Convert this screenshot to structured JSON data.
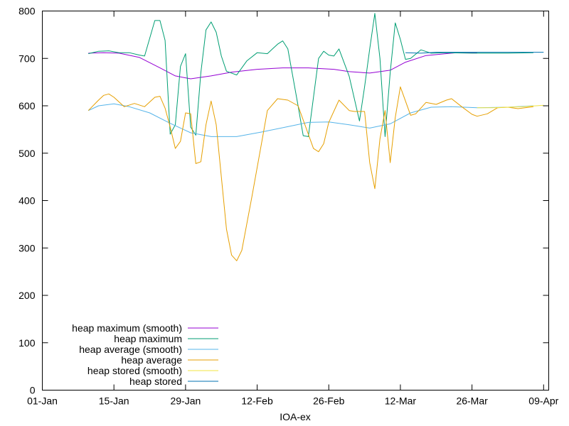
{
  "chart_data": {
    "type": "line",
    "title": "",
    "xlabel": "IOA-ex",
    "ylabel": "",
    "xlim": [
      "2024-01-01",
      "2024-04-09"
    ],
    "ylim": [
      0,
      800
    ],
    "x_ticks": [
      "01-Jan",
      "15-Jan",
      "29-Jan",
      "12-Feb",
      "26-Feb",
      "12-Mar",
      "26-Mar",
      "09-Apr"
    ],
    "y_ticks": [
      "0",
      "100",
      "200",
      "300",
      "400",
      "500",
      "600",
      "700",
      "800"
    ],
    "grid": false,
    "legend_position": "bottom-left",
    "series": [
      {
        "name": "heap maximum (smooth)",
        "color": "#9400d3",
        "points": [
          [
            "2024-01-10",
            711
          ],
          [
            "2024-01-13",
            712
          ],
          [
            "2024-01-16",
            711
          ],
          [
            "2024-01-20",
            702
          ],
          [
            "2024-01-24",
            680
          ],
          [
            "2024-01-27",
            663
          ],
          [
            "2024-01-30",
            657
          ],
          [
            "2024-02-03",
            663
          ],
          [
            "2024-02-07",
            671
          ],
          [
            "2024-02-12",
            677
          ],
          [
            "2024-02-17",
            680
          ],
          [
            "2024-02-22",
            680
          ],
          [
            "2024-02-27",
            677
          ],
          [
            "2024-03-01",
            672
          ],
          [
            "2024-03-05",
            669
          ],
          [
            "2024-03-09",
            675
          ],
          [
            "2024-03-12",
            692
          ],
          [
            "2024-03-16",
            706
          ],
          [
            "2024-03-22",
            712
          ],
          [
            "2024-03-26",
            712
          ]
        ]
      },
      {
        "name": "heap maximum",
        "color": "#009e73",
        "points": [
          [
            "2024-01-10",
            710
          ],
          [
            "2024-01-12",
            715
          ],
          [
            "2024-01-14",
            716
          ],
          [
            "2024-01-16",
            712
          ],
          [
            "2024-01-18",
            712
          ],
          [
            "2024-01-20",
            707
          ],
          [
            "2024-01-21",
            705
          ],
          [
            "2024-01-23",
            780
          ],
          [
            "2024-01-24",
            780
          ],
          [
            "2024-01-25",
            738
          ],
          [
            "2024-01-26",
            540
          ],
          [
            "2024-01-27",
            560
          ],
          [
            "2024-01-28",
            683
          ],
          [
            "2024-01-29",
            710
          ],
          [
            "2024-01-30",
            555
          ],
          [
            "2024-01-31",
            538
          ],
          [
            "2024-02-01",
            670
          ],
          [
            "2024-02-02",
            760
          ],
          [
            "2024-02-03",
            777
          ],
          [
            "2024-02-04",
            755
          ],
          [
            "2024-02-05",
            705
          ],
          [
            "2024-02-06",
            673
          ],
          [
            "2024-02-08",
            665
          ],
          [
            "2024-02-10",
            695
          ],
          [
            "2024-02-12",
            712
          ],
          [
            "2024-02-14",
            710
          ],
          [
            "2024-02-16",
            730
          ],
          [
            "2024-02-17",
            737
          ],
          [
            "2024-02-18",
            720
          ],
          [
            "2024-02-20",
            600
          ],
          [
            "2024-02-21",
            537
          ],
          [
            "2024-02-22",
            535
          ],
          [
            "2024-02-24",
            700
          ],
          [
            "2024-02-25",
            715
          ],
          [
            "2024-02-26",
            707
          ],
          [
            "2024-02-27",
            705
          ],
          [
            "2024-02-28",
            720
          ],
          [
            "2024-03-01",
            662
          ],
          [
            "2024-03-03",
            568
          ],
          [
            "2024-03-04",
            640
          ],
          [
            "2024-03-05",
            720
          ],
          [
            "2024-03-06",
            795
          ],
          [
            "2024-03-07",
            700
          ],
          [
            "2024-03-08",
            535
          ],
          [
            "2024-03-09",
            670
          ],
          [
            "2024-03-10",
            775
          ],
          [
            "2024-03-11",
            740
          ],
          [
            "2024-03-12",
            698
          ],
          [
            "2024-03-13",
            700
          ],
          [
            "2024-03-15",
            718
          ],
          [
            "2024-03-17",
            711
          ],
          [
            "2024-03-20",
            712
          ],
          [
            "2024-03-25",
            711
          ],
          [
            "2024-04-01",
            711
          ],
          [
            "2024-04-06",
            712
          ]
        ]
      },
      {
        "name": "heap average (smooth)",
        "color": "#56b4e9",
        "points": [
          [
            "2024-01-10",
            590
          ],
          [
            "2024-01-12",
            600
          ],
          [
            "2024-01-15",
            604
          ],
          [
            "2024-01-18",
            598
          ],
          [
            "2024-01-22",
            585
          ],
          [
            "2024-01-26",
            563
          ],
          [
            "2024-01-30",
            543
          ],
          [
            "2024-02-03",
            535
          ],
          [
            "2024-02-08",
            535
          ],
          [
            "2024-02-13",
            545
          ],
          [
            "2024-02-18",
            556
          ],
          [
            "2024-02-22",
            565
          ],
          [
            "2024-02-26",
            566
          ],
          [
            "2024-03-01",
            560
          ],
          [
            "2024-03-05",
            553
          ],
          [
            "2024-03-09",
            562
          ],
          [
            "2024-03-13",
            585
          ],
          [
            "2024-03-17",
            597
          ],
          [
            "2024-03-21",
            598
          ],
          [
            "2024-03-26",
            596
          ],
          [
            "2024-04-01",
            597
          ],
          [
            "2024-04-06",
            600
          ]
        ]
      },
      {
        "name": "heap average",
        "color": "#e69f00",
        "points": [
          [
            "2024-01-10",
            590
          ],
          [
            "2024-01-12",
            612
          ],
          [
            "2024-01-13",
            622
          ],
          [
            "2024-01-14",
            625
          ],
          [
            "2024-01-15",
            618
          ],
          [
            "2024-01-17",
            598
          ],
          [
            "2024-01-19",
            605
          ],
          [
            "2024-01-21",
            598
          ],
          [
            "2024-01-23",
            618
          ],
          [
            "2024-01-24",
            620
          ],
          [
            "2024-01-25",
            595
          ],
          [
            "2024-01-26",
            555
          ],
          [
            "2024-01-27",
            510
          ],
          [
            "2024-01-28",
            525
          ],
          [
            "2024-01-29",
            585
          ],
          [
            "2024-01-30",
            583
          ],
          [
            "2024-01-31",
            478
          ],
          [
            "2024-02-01",
            482
          ],
          [
            "2024-02-02",
            560
          ],
          [
            "2024-02-03",
            610
          ],
          [
            "2024-02-04",
            560
          ],
          [
            "2024-02-05",
            450
          ],
          [
            "2024-02-06",
            340
          ],
          [
            "2024-02-07",
            285
          ],
          [
            "2024-02-08",
            273
          ],
          [
            "2024-02-09",
            295
          ],
          [
            "2024-02-11",
            410
          ],
          [
            "2024-02-13",
            530
          ],
          [
            "2024-02-14",
            590
          ],
          [
            "2024-02-16",
            615
          ],
          [
            "2024-02-18",
            612
          ],
          [
            "2024-02-20",
            600
          ],
          [
            "2024-02-21",
            570
          ],
          [
            "2024-02-23",
            510
          ],
          [
            "2024-02-24",
            503
          ],
          [
            "2024-02-25",
            520
          ],
          [
            "2024-02-26",
            565
          ],
          [
            "2024-02-28",
            612
          ],
          [
            "2024-03-01",
            590
          ],
          [
            "2024-03-02",
            588
          ],
          [
            "2024-03-04",
            588
          ],
          [
            "2024-03-05",
            480
          ],
          [
            "2024-03-06",
            425
          ],
          [
            "2024-03-07",
            530
          ],
          [
            "2024-03-08",
            590
          ],
          [
            "2024-03-09",
            480
          ],
          [
            "2024-03-10",
            575
          ],
          [
            "2024-03-11",
            640
          ],
          [
            "2024-03-12",
            610
          ],
          [
            "2024-03-13",
            580
          ],
          [
            "2024-03-14",
            583
          ],
          [
            "2024-03-16",
            607
          ],
          [
            "2024-03-18",
            603
          ],
          [
            "2024-03-20",
            612
          ],
          [
            "2024-03-21",
            615
          ],
          [
            "2024-03-23",
            598
          ],
          [
            "2024-03-25",
            582
          ],
          [
            "2024-03-26",
            578
          ],
          [
            "2024-03-28",
            583
          ],
          [
            "2024-03-30",
            596
          ],
          [
            "2024-04-01",
            597
          ],
          [
            "2024-04-03",
            594
          ],
          [
            "2024-04-06",
            598
          ]
        ]
      },
      {
        "name": "heap stored (smooth)",
        "color": "#f0e442",
        "points": [
          [
            "2024-03-26",
            596
          ],
          [
            "2024-03-29",
            596
          ],
          [
            "2024-04-01",
            597
          ],
          [
            "2024-04-04",
            598
          ],
          [
            "2024-04-08",
            601
          ]
        ]
      },
      {
        "name": "heap stored",
        "color": "#0072b2",
        "points": [
          [
            "2024-03-12",
            712
          ],
          [
            "2024-03-15",
            711
          ],
          [
            "2024-03-18",
            713
          ],
          [
            "2024-03-22",
            713
          ],
          [
            "2024-04-06",
            713
          ],
          [
            "2024-04-08",
            713
          ]
        ]
      }
    ]
  }
}
